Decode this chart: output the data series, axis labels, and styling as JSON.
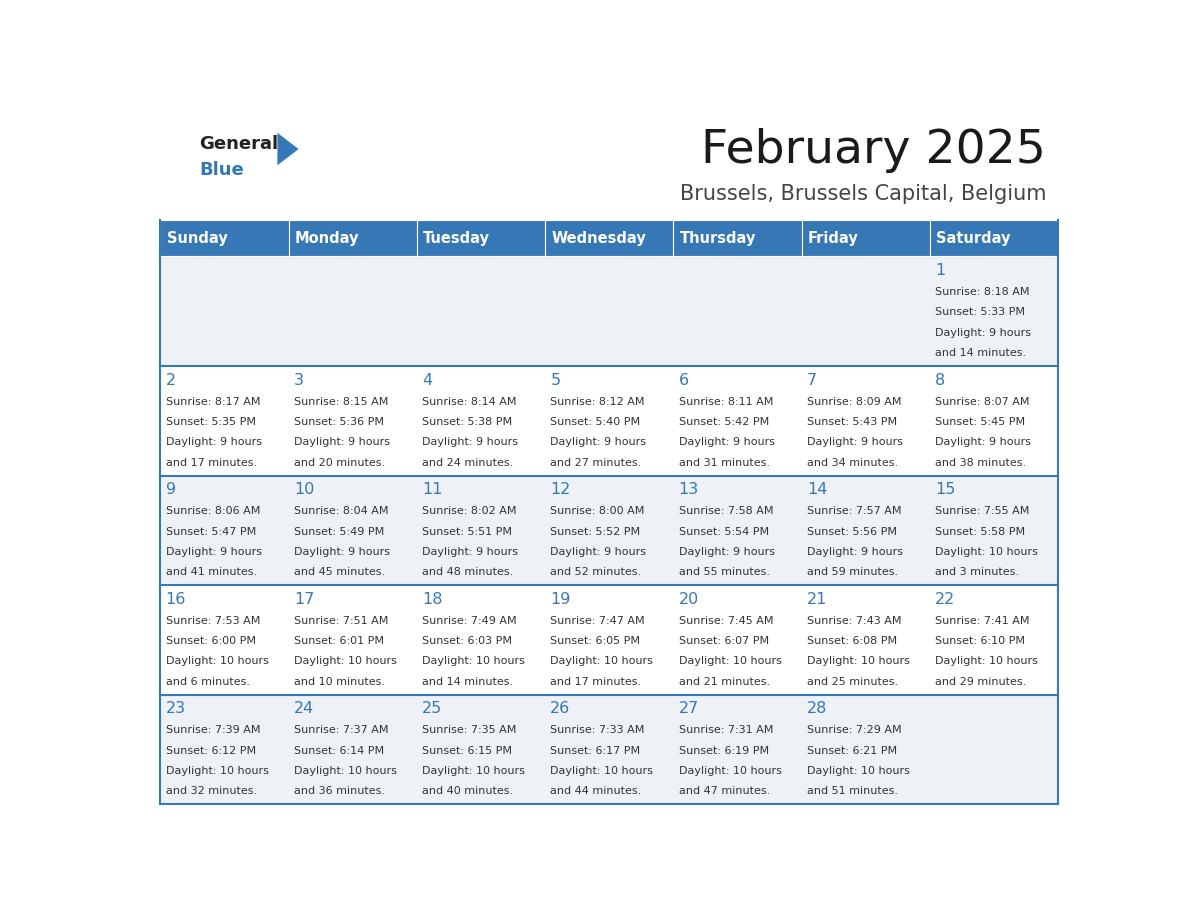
{
  "title": "February 2025",
  "subtitle": "Brussels, Brussels Capital, Belgium",
  "header_bg": "#3578b5",
  "header_text": "#ffffff",
  "row_bg_odd": "#eef2f7",
  "row_bg_even": "#ffffff",
  "day_number_color": "#3578b5",
  "info_text_color": "#333333",
  "border_color": "#3578b5",
  "days_of_week": [
    "Sunday",
    "Monday",
    "Tuesday",
    "Wednesday",
    "Thursday",
    "Friday",
    "Saturday"
  ],
  "calendar": [
    [
      null,
      null,
      null,
      null,
      null,
      null,
      {
        "day": "1",
        "sunrise": "8:18 AM",
        "sunset": "5:33 PM",
        "daylight_h": "9 hours",
        "daylight_m": "and 14 minutes."
      }
    ],
    [
      {
        "day": "2",
        "sunrise": "8:17 AM",
        "sunset": "5:35 PM",
        "daylight_h": "9 hours",
        "daylight_m": "and 17 minutes."
      },
      {
        "day": "3",
        "sunrise": "8:15 AM",
        "sunset": "5:36 PM",
        "daylight_h": "9 hours",
        "daylight_m": "and 20 minutes."
      },
      {
        "day": "4",
        "sunrise": "8:14 AM",
        "sunset": "5:38 PM",
        "daylight_h": "9 hours",
        "daylight_m": "and 24 minutes."
      },
      {
        "day": "5",
        "sunrise": "8:12 AM",
        "sunset": "5:40 PM",
        "daylight_h": "9 hours",
        "daylight_m": "and 27 minutes."
      },
      {
        "day": "6",
        "sunrise": "8:11 AM",
        "sunset": "5:42 PM",
        "daylight_h": "9 hours",
        "daylight_m": "and 31 minutes."
      },
      {
        "day": "7",
        "sunrise": "8:09 AM",
        "sunset": "5:43 PM",
        "daylight_h": "9 hours",
        "daylight_m": "and 34 minutes."
      },
      {
        "day": "8",
        "sunrise": "8:07 AM",
        "sunset": "5:45 PM",
        "daylight_h": "9 hours",
        "daylight_m": "and 38 minutes."
      }
    ],
    [
      {
        "day": "9",
        "sunrise": "8:06 AM",
        "sunset": "5:47 PM",
        "daylight_h": "9 hours",
        "daylight_m": "and 41 minutes."
      },
      {
        "day": "10",
        "sunrise": "8:04 AM",
        "sunset": "5:49 PM",
        "daylight_h": "9 hours",
        "daylight_m": "and 45 minutes."
      },
      {
        "day": "11",
        "sunrise": "8:02 AM",
        "sunset": "5:51 PM",
        "daylight_h": "9 hours",
        "daylight_m": "and 48 minutes."
      },
      {
        "day": "12",
        "sunrise": "8:00 AM",
        "sunset": "5:52 PM",
        "daylight_h": "9 hours",
        "daylight_m": "and 52 minutes."
      },
      {
        "day": "13",
        "sunrise": "7:58 AM",
        "sunset": "5:54 PM",
        "daylight_h": "9 hours",
        "daylight_m": "and 55 minutes."
      },
      {
        "day": "14",
        "sunrise": "7:57 AM",
        "sunset": "5:56 PM",
        "daylight_h": "9 hours",
        "daylight_m": "and 59 minutes."
      },
      {
        "day": "15",
        "sunrise": "7:55 AM",
        "sunset": "5:58 PM",
        "daylight_h": "10 hours",
        "daylight_m": "and 3 minutes."
      }
    ],
    [
      {
        "day": "16",
        "sunrise": "7:53 AM",
        "sunset": "6:00 PM",
        "daylight_h": "10 hours",
        "daylight_m": "and 6 minutes."
      },
      {
        "day": "17",
        "sunrise": "7:51 AM",
        "sunset": "6:01 PM",
        "daylight_h": "10 hours",
        "daylight_m": "and 10 minutes."
      },
      {
        "day": "18",
        "sunrise": "7:49 AM",
        "sunset": "6:03 PM",
        "daylight_h": "10 hours",
        "daylight_m": "and 14 minutes."
      },
      {
        "day": "19",
        "sunrise": "7:47 AM",
        "sunset": "6:05 PM",
        "daylight_h": "10 hours",
        "daylight_m": "and 17 minutes."
      },
      {
        "day": "20",
        "sunrise": "7:45 AM",
        "sunset": "6:07 PM",
        "daylight_h": "10 hours",
        "daylight_m": "and 21 minutes."
      },
      {
        "day": "21",
        "sunrise": "7:43 AM",
        "sunset": "6:08 PM",
        "daylight_h": "10 hours",
        "daylight_m": "and 25 minutes."
      },
      {
        "day": "22",
        "sunrise": "7:41 AM",
        "sunset": "6:10 PM",
        "daylight_h": "10 hours",
        "daylight_m": "and 29 minutes."
      }
    ],
    [
      {
        "day": "23",
        "sunrise": "7:39 AM",
        "sunset": "6:12 PM",
        "daylight_h": "10 hours",
        "daylight_m": "and 32 minutes."
      },
      {
        "day": "24",
        "sunrise": "7:37 AM",
        "sunset": "6:14 PM",
        "daylight_h": "10 hours",
        "daylight_m": "and 36 minutes."
      },
      {
        "day": "25",
        "sunrise": "7:35 AM",
        "sunset": "6:15 PM",
        "daylight_h": "10 hours",
        "daylight_m": "and 40 minutes."
      },
      {
        "day": "26",
        "sunrise": "7:33 AM",
        "sunset": "6:17 PM",
        "daylight_h": "10 hours",
        "daylight_m": "and 44 minutes."
      },
      {
        "day": "27",
        "sunrise": "7:31 AM",
        "sunset": "6:19 PM",
        "daylight_h": "10 hours",
        "daylight_m": "and 47 minutes."
      },
      {
        "day": "28",
        "sunrise": "7:29 AM",
        "sunset": "6:21 PM",
        "daylight_h": "10 hours",
        "daylight_m": "and 51 minutes."
      },
      null
    ]
  ]
}
